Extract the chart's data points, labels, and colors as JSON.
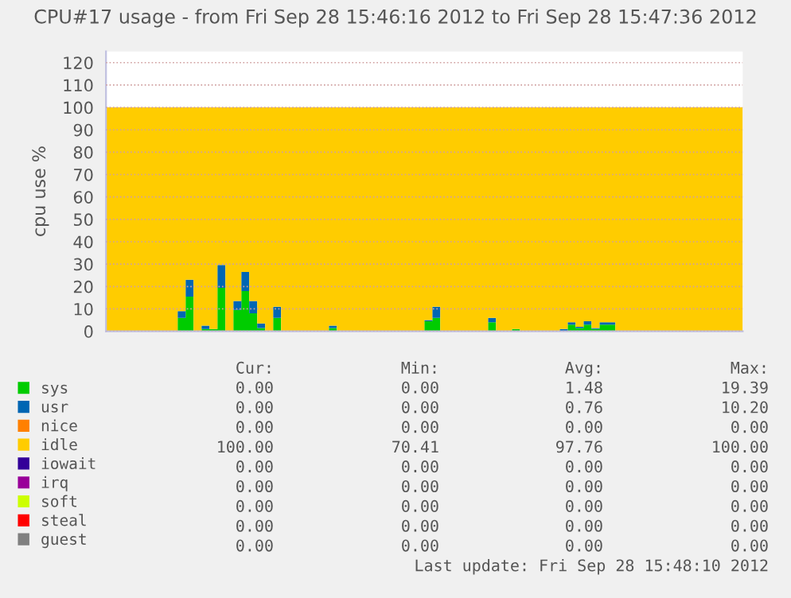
{
  "chart_data": {
    "type": "area",
    "stacked": true,
    "title": "CPU#17 usage - from Fri Sep 28 15:46:16 2012 to Fri Sep 28 15:47:36 2012",
    "ylabel": "cpu use %",
    "categories": [
      null,
      null,
      null,
      null,
      null,
      null,
      null,
      null,
      null,
      null,
      null,
      null,
      null,
      null,
      null,
      null,
      null,
      null,
      null,
      null,
      null,
      null,
      null,
      null,
      null,
      null,
      null,
      null,
      null,
      null,
      null,
      null,
      null,
      null,
      null,
      null,
      null,
      null,
      null,
      null,
      null,
      null,
      null,
      null,
      null,
      null,
      null,
      null,
      null,
      null,
      null,
      null,
      null,
      null,
      null,
      null,
      null,
      null,
      null,
      null,
      null,
      null,
      null,
      null,
      null,
      null,
      null,
      null,
      null,
      null,
      null,
      null,
      null,
      null,
      null,
      null,
      null,
      null,
      null,
      null
    ],
    "series": [
      {
        "name": "sys",
        "color": "#00cc00",
        "values": [
          0,
          0,
          0,
          0,
          0,
          0,
          0,
          0,
          0,
          6,
          15.5,
          0,
          1,
          1,
          19.4,
          0,
          9.5,
          18,
          8,
          1.5,
          0,
          6,
          0,
          0,
          0,
          0,
          0,
          0,
          1.5,
          0,
          0,
          0,
          0,
          0,
          0,
          0,
          0,
          0,
          0,
          0,
          4.5,
          6,
          0,
          0,
          0,
          0,
          0,
          0,
          4,
          0,
          0,
          1,
          0,
          0,
          0,
          0,
          0,
          0,
          3,
          1.5,
          3,
          1,
          3,
          3,
          0,
          0,
          0,
          0,
          0,
          0,
          0,
          0,
          0,
          0,
          0,
          0,
          0,
          0,
          0,
          0
        ]
      },
      {
        "name": "usr",
        "color": "#0066b3",
        "values": [
          0,
          0,
          0,
          0,
          0,
          0,
          0,
          0,
          0,
          3,
          7.5,
          0,
          1.5,
          0,
          10.2,
          0,
          4,
          8.5,
          5.5,
          2,
          0,
          5,
          0,
          0,
          0,
          0,
          0,
          0,
          1,
          0,
          0,
          0,
          0,
          0,
          0,
          0,
          0,
          0,
          0,
          0,
          0.5,
          5,
          0,
          0,
          0,
          0,
          0,
          0,
          2,
          0,
          0,
          0,
          0,
          0,
          0,
          0,
          0,
          1,
          1,
          0.5,
          1.5,
          0.5,
          1,
          1,
          0,
          0,
          0,
          0,
          0,
          0,
          0,
          0,
          0,
          0,
          0,
          0,
          0,
          0,
          0,
          0
        ]
      },
      {
        "name": "nice",
        "color": "#ff8000",
        "values": [
          null,
          null,
          null,
          null,
          null,
          null,
          null,
          null,
          null,
          null,
          null,
          null,
          null,
          null,
          null,
          null,
          null,
          null,
          null,
          null,
          null,
          null,
          null,
          null,
          null,
          null,
          null,
          null,
          null,
          null,
          null,
          null,
          null,
          null,
          null,
          null,
          null,
          null,
          null,
          null,
          null,
          null,
          null,
          null,
          null,
          null,
          null,
          null,
          null,
          null,
          null,
          null,
          null,
          null,
          null,
          null,
          null,
          null,
          null,
          null,
          null,
          null,
          null,
          null,
          null,
          null,
          null,
          null,
          null,
          null,
          null,
          null,
          null,
          null,
          null,
          null,
          null,
          null,
          null,
          null
        ]
      },
      {
        "name": "idle",
        "color": "#ffcc00",
        "values": [
          100,
          100,
          100,
          100,
          100,
          100,
          100,
          100,
          100,
          91,
          77,
          100,
          97.5,
          99,
          70.4,
          100,
          86.5,
          73.5,
          86.5,
          96.5,
          100,
          89,
          100,
          100,
          100,
          100,
          100,
          100,
          97.5,
          100,
          100,
          100,
          100,
          100,
          100,
          100,
          100,
          100,
          100,
          100,
          95,
          89,
          100,
          100,
          100,
          100,
          100,
          100,
          94,
          100,
          100,
          99,
          100,
          100,
          100,
          100,
          100,
          99,
          96,
          98,
          95.5,
          98.5,
          96,
          96,
          100,
          100,
          100,
          100,
          100,
          100,
          100,
          100,
          100,
          100,
          100,
          100,
          100,
          100,
          100,
          100
        ]
      },
      {
        "name": "iowait",
        "color": "#330099",
        "values": [
          null,
          null,
          null,
          null,
          null,
          null,
          null,
          null,
          null,
          null,
          null,
          null,
          null,
          null,
          null,
          null,
          null,
          null,
          null,
          null,
          null,
          null,
          null,
          null,
          null,
          null,
          null,
          null,
          null,
          null,
          null,
          null,
          null,
          null,
          null,
          null,
          null,
          null,
          null,
          null,
          null,
          null,
          null,
          null,
          null,
          null,
          null,
          null,
          null,
          null,
          null,
          null,
          null,
          null,
          null,
          null,
          null,
          null,
          null,
          null,
          null,
          null,
          null,
          null,
          null,
          null,
          null,
          null,
          null,
          null,
          null,
          null,
          null,
          null,
          null,
          null,
          null,
          null,
          null,
          null
        ]
      },
      {
        "name": "irq",
        "color": "#990099",
        "values": [
          null,
          null,
          null,
          null,
          null,
          null,
          null,
          null,
          null,
          null,
          null,
          null,
          null,
          null,
          null,
          null,
          null,
          null,
          null,
          null,
          null,
          null,
          null,
          null,
          null,
          null,
          null,
          null,
          null,
          null,
          null,
          null,
          null,
          null,
          null,
          null,
          null,
          null,
          null,
          null,
          null,
          null,
          null,
          null,
          null,
          null,
          null,
          null,
          null,
          null,
          null,
          null,
          null,
          null,
          null,
          null,
          null,
          null,
          null,
          null,
          null,
          null,
          null,
          null,
          null,
          null,
          null,
          null,
          null,
          null,
          null,
          null,
          null,
          null,
          null,
          null,
          null,
          null,
          null,
          null
        ]
      },
      {
        "name": "soft",
        "color": "#ccff00",
        "values": [
          null,
          null,
          null,
          null,
          null,
          null,
          null,
          null,
          null,
          null,
          null,
          null,
          null,
          null,
          null,
          null,
          null,
          null,
          null,
          null,
          null,
          null,
          null,
          null,
          null,
          null,
          null,
          null,
          null,
          null,
          null,
          null,
          null,
          null,
          null,
          null,
          null,
          null,
          null,
          null,
          null,
          null,
          null,
          null,
          null,
          null,
          null,
          null,
          null,
          null,
          null,
          null,
          null,
          null,
          null,
          null,
          null,
          null,
          null,
          null,
          null,
          null,
          null,
          null,
          null,
          null,
          null,
          null,
          null,
          null,
          null,
          null,
          null,
          null,
          null,
          null,
          null,
          null,
          null,
          null
        ]
      },
      {
        "name": "steal",
        "color": "#ff0000",
        "values": [
          null,
          null,
          null,
          null,
          null,
          null,
          null,
          null,
          null,
          null,
          null,
          null,
          null,
          null,
          null,
          null,
          null,
          null,
          null,
          null,
          null,
          null,
          null,
          null,
          null,
          null,
          null,
          null,
          null,
          null,
          null,
          null,
          null,
          null,
          null,
          null,
          null,
          null,
          null,
          null,
          null,
          null,
          null,
          null,
          null,
          null,
          null,
          null,
          null,
          null,
          null,
          null,
          null,
          null,
          null,
          null,
          null,
          null,
          null,
          null,
          null,
          null,
          null,
          null,
          null,
          null,
          null,
          null,
          null,
          null,
          null,
          null,
          null,
          null,
          null,
          null,
          null,
          null,
          null,
          null
        ]
      },
      {
        "name": "guest",
        "color": "#808080",
        "values": [
          null,
          null,
          null,
          null,
          null,
          null,
          null,
          null,
          null,
          null,
          null,
          null,
          null,
          null,
          null,
          null,
          null,
          null,
          null,
          null,
          null,
          null,
          null,
          null,
          null,
          null,
          null,
          null,
          null,
          null,
          null,
          null,
          null,
          null,
          null,
          null,
          null,
          null,
          null,
          null,
          null,
          null,
          null,
          null,
          null,
          null,
          null,
          null,
          null,
          null,
          null,
          null,
          null,
          null,
          null,
          null,
          null,
          null,
          null,
          null,
          null,
          null,
          null,
          null,
          null,
          null,
          null,
          null,
          null,
          null,
          null,
          null,
          null,
          null,
          null,
          null,
          null,
          null,
          null,
          null
        ]
      }
    ],
    "ylim": [
      0,
      125
    ],
    "yticks": [
      0,
      10,
      20,
      30,
      40,
      50,
      60,
      70,
      80,
      90,
      100,
      110,
      120
    ],
    "grid": "y",
    "legend": "bottom left",
    "tick_labels": "y",
    "annotations": [
      "Cur:",
      "Min:",
      "Avg:",
      "Max:",
      "0.00",
      "0.00",
      "1.48",
      "19.39",
      "0.00",
      "0.00",
      "0.76",
      "10.20",
      "0.00",
      "0.00",
      "0.00",
      "0.00",
      "100.00",
      "70.41",
      "97.76",
      "100.00",
      "0.00",
      "0.00",
      "0.00",
      "0.00",
      "0.00",
      "0.00",
      "0.00",
      "0.00",
      "0.00",
      "0.00",
      "0.00",
      "0.00",
      "0.00",
      "0.00",
      "0.00",
      "0.00",
      "0.00",
      "0.00",
      "0.00",
      "0.00",
      "Last update: Fri Sep 28 15:48:10 2012"
    ]
  }
}
